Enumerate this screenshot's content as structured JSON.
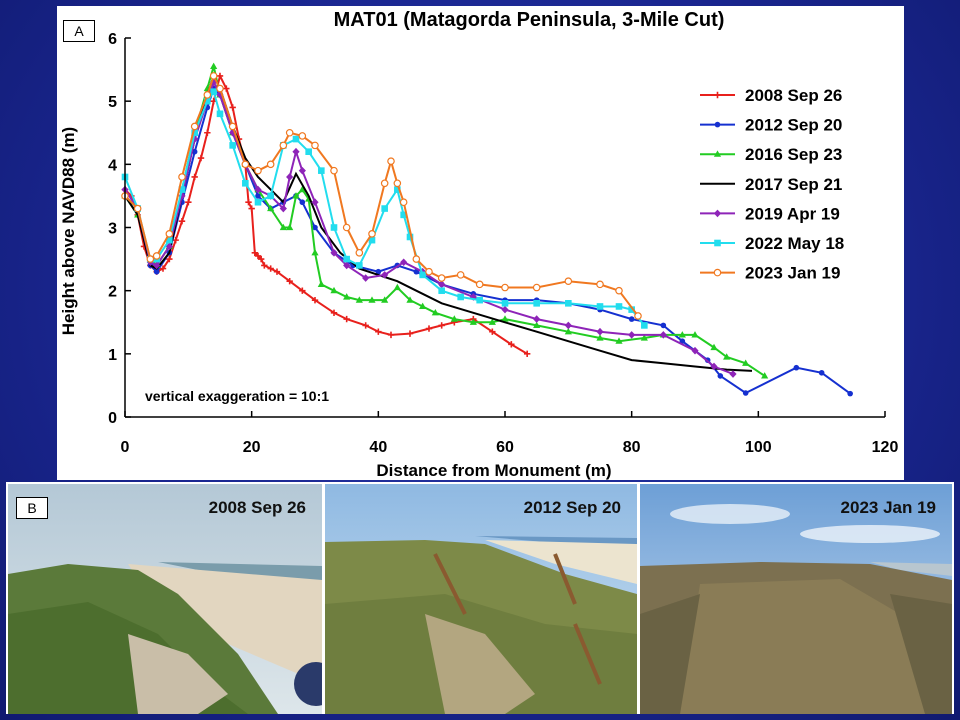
{
  "panel_a_label": "A",
  "panel_b_label": "B",
  "chart_data": {
    "type": "line",
    "title": "MAT01 (Matagorda Peninsula, 3-Mile Cut)",
    "xlabel": "Distance from Monument (m)",
    "ylabel": "Height above NAVD88 (m)",
    "xlim": [
      0,
      120
    ],
    "ylim": [
      0,
      6
    ],
    "xticks": [
      0,
      20,
      40,
      60,
      80,
      100,
      120
    ],
    "yticks": [
      0,
      1,
      2,
      3,
      4,
      5,
      6
    ],
    "annotation": "vertical exaggeration = 10:1",
    "legend_position": "right",
    "series": [
      {
        "name": "2008 Sep 26",
        "color": "#e8201c",
        "marker": "plus",
        "points": [
          [
            0,
            3.6
          ],
          [
            1,
            3.5
          ],
          [
            2,
            3.2
          ],
          [
            3,
            2.7
          ],
          [
            4,
            2.4
          ],
          [
            5,
            2.3
          ],
          [
            6,
            2.35
          ],
          [
            7,
            2.5
          ],
          [
            8,
            2.8
          ],
          [
            9,
            3.1
          ],
          [
            10,
            3.4
          ],
          [
            11,
            3.8
          ],
          [
            12,
            4.1
          ],
          [
            13,
            4.5
          ],
          [
            14,
            5.0
          ],
          [
            15,
            5.4
          ],
          [
            16,
            5.2
          ],
          [
            17,
            4.9
          ],
          [
            18,
            4.4
          ],
          [
            19,
            4.0
          ],
          [
            19.5,
            3.4
          ],
          [
            20,
            3.3
          ],
          [
            20.5,
            2.6
          ],
          [
            21,
            2.55
          ],
          [
            21.5,
            2.5
          ],
          [
            22,
            2.4
          ],
          [
            23,
            2.35
          ],
          [
            24,
            2.3
          ],
          [
            26,
            2.15
          ],
          [
            28,
            2.0
          ],
          [
            30,
            1.85
          ],
          [
            33,
            1.65
          ],
          [
            35,
            1.55
          ],
          [
            38,
            1.45
          ],
          [
            40,
            1.35
          ],
          [
            42,
            1.3
          ],
          [
            45,
            1.32
          ],
          [
            48,
            1.4
          ],
          [
            50,
            1.45
          ],
          [
            52,
            1.5
          ],
          [
            55,
            1.55
          ],
          [
            58,
            1.35
          ],
          [
            61,
            1.15
          ],
          [
            63.5,
            1.0
          ]
        ]
      },
      {
        "name": "2012 Sep 20",
        "color": "#1530d0",
        "marker": "circle",
        "points": [
          [
            0,
            3.5
          ],
          [
            2,
            3.3
          ],
          [
            4,
            2.4
          ],
          [
            5,
            2.3
          ],
          [
            7,
            2.6
          ],
          [
            9,
            3.4
          ],
          [
            11,
            4.2
          ],
          [
            13,
            4.9
          ],
          [
            14,
            5.2
          ],
          [
            15,
            5.1
          ],
          [
            17,
            4.5
          ],
          [
            19,
            4.0
          ],
          [
            21,
            3.5
          ],
          [
            23,
            3.3
          ],
          [
            25,
            3.4
          ],
          [
            27,
            3.5
          ],
          [
            28,
            3.4
          ],
          [
            30,
            3.0
          ],
          [
            33,
            2.6
          ],
          [
            36,
            2.4
          ],
          [
            40,
            2.3
          ],
          [
            43,
            2.4
          ],
          [
            46,
            2.3
          ],
          [
            50,
            2.1
          ],
          [
            55,
            1.95
          ],
          [
            60,
            1.85
          ],
          [
            65,
            1.85
          ],
          [
            70,
            1.8
          ],
          [
            75,
            1.7
          ],
          [
            80,
            1.55
          ],
          [
            85,
            1.45
          ],
          [
            88,
            1.2
          ],
          [
            92,
            0.9
          ],
          [
            94,
            0.65
          ],
          [
            98,
            0.38
          ],
          [
            106,
            0.78
          ],
          [
            110,
            0.7
          ],
          [
            114.5,
            0.37
          ]
        ]
      },
      {
        "name": "2016 Sep 23",
        "color": "#22cc22",
        "marker": "triangle",
        "points": [
          [
            0,
            3.5
          ],
          [
            2,
            3.2
          ],
          [
            4,
            2.5
          ],
          [
            5,
            2.4
          ],
          [
            7,
            2.7
          ],
          [
            9,
            3.6
          ],
          [
            11,
            4.5
          ],
          [
            13,
            5.2
          ],
          [
            14,
            5.55
          ],
          [
            15,
            5.1
          ],
          [
            17,
            4.5
          ],
          [
            19,
            4.0
          ],
          [
            21,
            3.6
          ],
          [
            23,
            3.3
          ],
          [
            25,
            3.0
          ],
          [
            26,
            3.0
          ],
          [
            27,
            3.5
          ],
          [
            28,
            3.6
          ],
          [
            29,
            3.45
          ],
          [
            30,
            2.6
          ],
          [
            31,
            2.1
          ],
          [
            33,
            2.0
          ],
          [
            35,
            1.9
          ],
          [
            37,
            1.85
          ],
          [
            39,
            1.85
          ],
          [
            41,
            1.85
          ],
          [
            43,
            2.05
          ],
          [
            45,
            1.85
          ],
          [
            47,
            1.75
          ],
          [
            49,
            1.65
          ],
          [
            52,
            1.55
          ],
          [
            55,
            1.5
          ],
          [
            58,
            1.5
          ],
          [
            60,
            1.55
          ],
          [
            65,
            1.45
          ],
          [
            70,
            1.35
          ],
          [
            75,
            1.25
          ],
          [
            78,
            1.2
          ],
          [
            82,
            1.25
          ],
          [
            85,
            1.3
          ],
          [
            88,
            1.3
          ],
          [
            90,
            1.3
          ],
          [
            93,
            1.1
          ],
          [
            95,
            0.95
          ],
          [
            98,
            0.85
          ],
          [
            101,
            0.65
          ]
        ]
      },
      {
        "name": "2017 Sep 21",
        "color": "#000000",
        "marker": "none",
        "points": [
          [
            0,
            3.5
          ],
          [
            2,
            3.2
          ],
          [
            4,
            2.4
          ],
          [
            5,
            2.35
          ],
          [
            7,
            2.6
          ],
          [
            9,
            3.5
          ],
          [
            11,
            4.4
          ],
          [
            13,
            5.1
          ],
          [
            14,
            5.4
          ],
          [
            15,
            5.2
          ],
          [
            17,
            4.6
          ],
          [
            19,
            4.1
          ],
          [
            21,
            3.8
          ],
          [
            23,
            3.6
          ],
          [
            25,
            3.4
          ],
          [
            27,
            3.85
          ],
          [
            29,
            3.5
          ],
          [
            31,
            3.0
          ],
          [
            34,
            2.6
          ],
          [
            37,
            2.35
          ],
          [
            40,
            2.25
          ],
          [
            43,
            2.15
          ],
          [
            46,
            2.0
          ],
          [
            50,
            1.8
          ],
          [
            55,
            1.65
          ],
          [
            60,
            1.5
          ],
          [
            65,
            1.35
          ],
          [
            70,
            1.2
          ],
          [
            75,
            1.05
          ],
          [
            80,
            0.9
          ],
          [
            85,
            0.85
          ],
          [
            90,
            0.8
          ],
          [
            95,
            0.75
          ],
          [
            99,
            0.73
          ]
        ]
      },
      {
        "name": "2019 Apr 19",
        "color": "#8e24b8",
        "marker": "diamond",
        "points": [
          [
            0,
            3.6
          ],
          [
            2,
            3.3
          ],
          [
            4,
            2.45
          ],
          [
            5,
            2.4
          ],
          [
            7,
            2.7
          ],
          [
            9,
            3.5
          ],
          [
            11,
            4.4
          ],
          [
            13,
            5.0
          ],
          [
            14,
            5.3
          ],
          [
            15,
            5.1
          ],
          [
            17,
            4.5
          ],
          [
            19,
            4.0
          ],
          [
            21,
            3.6
          ],
          [
            23,
            3.5
          ],
          [
            25,
            3.3
          ],
          [
            26,
            3.8
          ],
          [
            27,
            4.2
          ],
          [
            28,
            3.9
          ],
          [
            30,
            3.4
          ],
          [
            33,
            2.6
          ],
          [
            35,
            2.4
          ],
          [
            38,
            2.2
          ],
          [
            41,
            2.25
          ],
          [
            44,
            2.45
          ],
          [
            47,
            2.3
          ],
          [
            50,
            2.1
          ],
          [
            55,
            1.9
          ],
          [
            60,
            1.7
          ],
          [
            65,
            1.55
          ],
          [
            70,
            1.45
          ],
          [
            75,
            1.35
          ],
          [
            80,
            1.3
          ],
          [
            85,
            1.3
          ],
          [
            90,
            1.05
          ],
          [
            93,
            0.8
          ],
          [
            96,
            0.68
          ]
        ]
      },
      {
        "name": "2022 May 18",
        "color": "#22ddee",
        "marker": "square",
        "points": [
          [
            0,
            3.8
          ],
          [
            2,
            3.3
          ],
          [
            4,
            2.5
          ],
          [
            5,
            2.5
          ],
          [
            7,
            2.8
          ],
          [
            9,
            3.6
          ],
          [
            11,
            4.5
          ],
          [
            13,
            5.0
          ],
          [
            14,
            5.15
          ],
          [
            15,
            4.8
          ],
          [
            17,
            4.3
          ],
          [
            19,
            3.7
          ],
          [
            21,
            3.4
          ],
          [
            23,
            3.5
          ],
          [
            25,
            4.3
          ],
          [
            27,
            4.4
          ],
          [
            29,
            4.2
          ],
          [
            31,
            3.9
          ],
          [
            33,
            3.0
          ],
          [
            35,
            2.5
          ],
          [
            37,
            2.4
          ],
          [
            39,
            2.8
          ],
          [
            41,
            3.3
          ],
          [
            43,
            3.6
          ],
          [
            44,
            3.2
          ],
          [
            45,
            2.85
          ],
          [
            47,
            2.25
          ],
          [
            50,
            2.0
          ],
          [
            53,
            1.9
          ],
          [
            56,
            1.85
          ],
          [
            60,
            1.8
          ],
          [
            65,
            1.8
          ],
          [
            70,
            1.8
          ],
          [
            75,
            1.75
          ],
          [
            78,
            1.75
          ],
          [
            80,
            1.7
          ],
          [
            82,
            1.45
          ]
        ]
      },
      {
        "name": "2023 Jan 19",
        "color": "#f07820",
        "marker": "open-circle",
        "points": [
          [
            0,
            3.5
          ],
          [
            2,
            3.3
          ],
          [
            4,
            2.5
          ],
          [
            5,
            2.55
          ],
          [
            7,
            2.9
          ],
          [
            9,
            3.8
          ],
          [
            11,
            4.6
          ],
          [
            13,
            5.1
          ],
          [
            14,
            5.4
          ],
          [
            15,
            5.2
          ],
          [
            17,
            4.6
          ],
          [
            19,
            4.0
          ],
          [
            21,
            3.9
          ],
          [
            23,
            4.0
          ],
          [
            25,
            4.3
          ],
          [
            26,
            4.5
          ],
          [
            28,
            4.45
          ],
          [
            30,
            4.3
          ],
          [
            33,
            3.9
          ],
          [
            35,
            3.0
          ],
          [
            37,
            2.6
          ],
          [
            39,
            2.9
          ],
          [
            41,
            3.7
          ],
          [
            42,
            4.05
          ],
          [
            43,
            3.7
          ],
          [
            44,
            3.4
          ],
          [
            46,
            2.5
          ],
          [
            48,
            2.3
          ],
          [
            50,
            2.2
          ],
          [
            53,
            2.25
          ],
          [
            56,
            2.1
          ],
          [
            60,
            2.05
          ],
          [
            65,
            2.05
          ],
          [
            70,
            2.15
          ],
          [
            75,
            2.1
          ],
          [
            78,
            2.0
          ],
          [
            81,
            1.6
          ]
        ]
      }
    ]
  },
  "photos": [
    {
      "caption": "2008 Sep 26"
    },
    {
      "caption": "2012 Sep 20"
    },
    {
      "caption": "2023 Jan 19"
    }
  ]
}
